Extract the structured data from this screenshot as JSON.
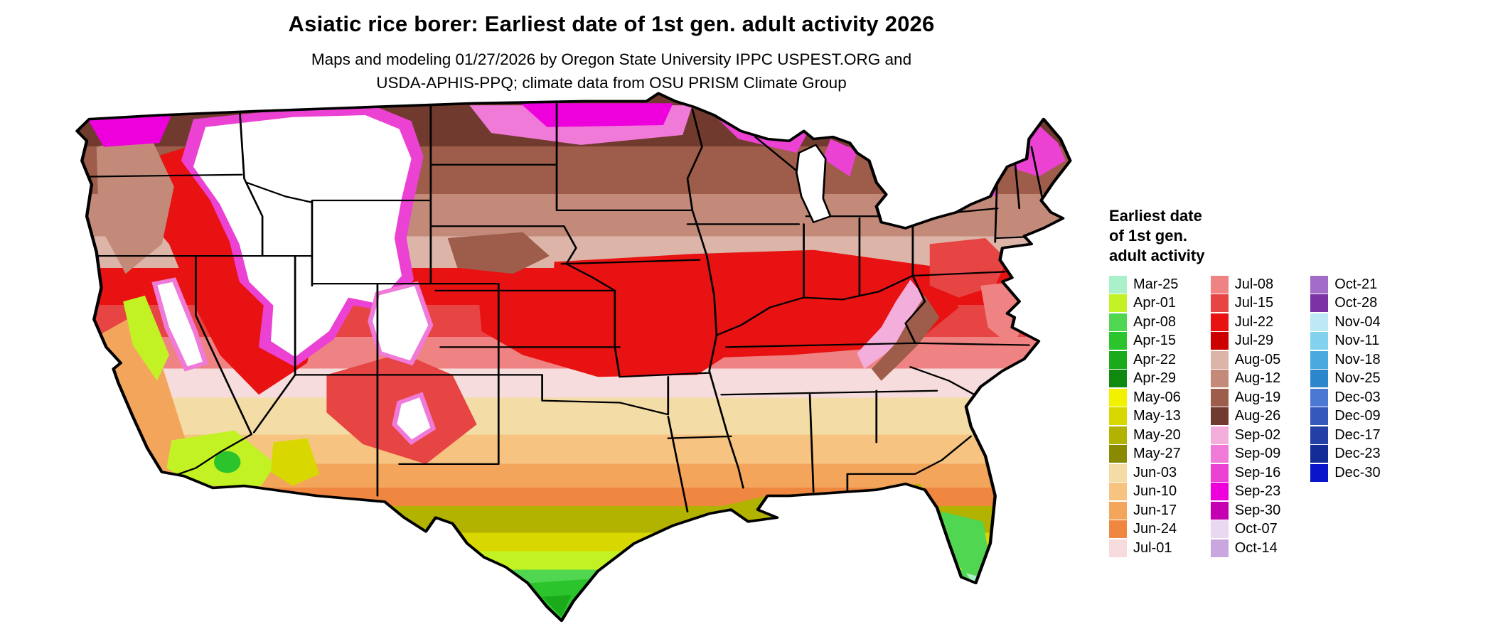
{
  "header": {
    "title": "Asiatic rice borer: Earliest date of 1st gen. adult activity 2026",
    "subtitle_line1": "Maps and modeling 01/27/2026 by Oregon State University IPPC USPEST.ORG and",
    "subtitle_line2": "USDA-APHIS-PPQ; climate data from OSU PRISM Climate Group"
  },
  "legend": {
    "title_lines": [
      "Earliest date",
      "of 1st gen.",
      "adult activity"
    ],
    "columns": [
      {
        "entries": [
          {
            "label": "Mar-25",
            "color": "#aaf0c8"
          },
          {
            "label": "Apr-01",
            "color": "#c3f224"
          },
          {
            "label": "Apr-08",
            "color": "#50d650"
          },
          {
            "label": "Apr-15",
            "color": "#2cc42c"
          },
          {
            "label": "Apr-22",
            "color": "#1aaa1a"
          },
          {
            "label": "Apr-29",
            "color": "#0f8a0f"
          },
          {
            "label": "May-06",
            "color": "#f2f200"
          },
          {
            "label": "May-13",
            "color": "#d8d800"
          },
          {
            "label": "May-20",
            "color": "#b2b200"
          },
          {
            "label": "May-27",
            "color": "#8a8a00"
          },
          {
            "label": "Jun-03",
            "color": "#f4dca6"
          },
          {
            "label": "Jun-10",
            "color": "#f6c380"
          },
          {
            "label": "Jun-17",
            "color": "#f4a55c"
          },
          {
            "label": "Jun-24",
            "color": "#ef8740"
          },
          {
            "label": "Jul-01",
            "color": "#f6dcdc"
          }
        ]
      },
      {
        "entries": [
          {
            "label": "Jul-08",
            "color": "#ef8282"
          },
          {
            "label": "Jul-15",
            "color": "#e74444"
          },
          {
            "label": "Jul-22",
            "color": "#e81212"
          },
          {
            "label": "Jul-29",
            "color": "#cc0000"
          },
          {
            "label": "Aug-05",
            "color": "#dcb4a8"
          },
          {
            "label": "Aug-12",
            "color": "#c38a7a"
          },
          {
            "label": "Aug-19",
            "color": "#9e5c4a"
          },
          {
            "label": "Aug-26",
            "color": "#713a2e"
          },
          {
            "label": "Sep-02",
            "color": "#f4aedc"
          },
          {
            "label": "Sep-09",
            "color": "#f07ad8"
          },
          {
            "label": "Sep-16",
            "color": "#ec42d4"
          },
          {
            "label": "Sep-23",
            "color": "#ee00dd"
          },
          {
            "label": "Sep-30",
            "color": "#c400b2"
          },
          {
            "label": "Oct-07",
            "color": "#e8d8f0"
          },
          {
            "label": "Oct-14",
            "color": "#c9a6de"
          }
        ]
      },
      {
        "entries": [
          {
            "label": "Oct-21",
            "color": "#a26cc8"
          },
          {
            "label": "Oct-28",
            "color": "#7c32a4"
          },
          {
            "label": "Nov-04",
            "color": "#bce9f5"
          },
          {
            "label": "Nov-11",
            "color": "#82d2ee"
          },
          {
            "label": "Nov-18",
            "color": "#4aaade"
          },
          {
            "label": "Nov-25",
            "color": "#2b86cc"
          },
          {
            "label": "Dec-03",
            "color": "#4a78d2"
          },
          {
            "label": "Dec-09",
            "color": "#3458bc"
          },
          {
            "label": "Dec-17",
            "color": "#2240a6"
          },
          {
            "label": "Dec-23",
            "color": "#142c96"
          },
          {
            "label": "Dec-30",
            "color": "#0a14c8"
          }
        ]
      }
    ]
  },
  "map": {
    "region": "Contiguous United States",
    "no_activity_color": "#ffffff",
    "outline_color": "#000000",
    "bands": [
      {
        "date": "Aug-26",
        "from": 0.0,
        "to": 0.1
      },
      {
        "date": "Aug-19",
        "from": 0.1,
        "to": 0.19
      },
      {
        "date": "Aug-12",
        "from": 0.19,
        "to": 0.27
      },
      {
        "date": "Aug-05",
        "from": 0.27,
        "to": 0.33
      },
      {
        "date": "Jul-22",
        "from": 0.33,
        "to": 0.4
      },
      {
        "date": "Jul-15",
        "from": 0.4,
        "to": 0.46
      },
      {
        "date": "Jul-08",
        "from": 0.46,
        "to": 0.52
      },
      {
        "date": "Jul-01",
        "from": 0.52,
        "to": 0.575
      },
      {
        "date": "Jun-03",
        "from": 0.575,
        "to": 0.645
      },
      {
        "date": "Jun-10",
        "from": 0.645,
        "to": 0.7
      },
      {
        "date": "Jun-17",
        "from": 0.7,
        "to": 0.745
      },
      {
        "date": "Jun-24",
        "from": 0.745,
        "to": 0.78
      },
      {
        "date": "May-20",
        "from": 0.78,
        "to": 0.83
      },
      {
        "date": "May-13",
        "from": 0.83,
        "to": 0.865
      },
      {
        "date": "Apr-01",
        "from": 0.865,
        "to": 0.9
      },
      {
        "date": "Apr-08",
        "from": 0.9,
        "to": 0.95
      },
      {
        "date": "Apr-15",
        "from": 0.95,
        "to": 1.0
      }
    ]
  }
}
